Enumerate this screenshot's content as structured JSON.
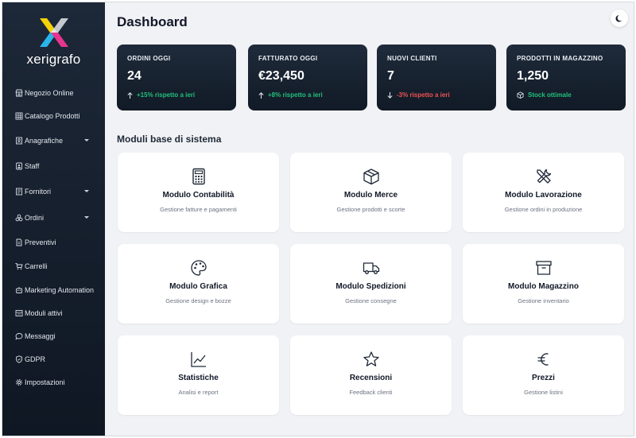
{
  "brand": {
    "name": "xerigrafo"
  },
  "sidebar": {
    "items": [
      {
        "label": "Negozio Online",
        "icon": "store-icon",
        "has_caret": false
      },
      {
        "label": "Catalogo Prodotti",
        "icon": "grid-icon",
        "has_caret": false
      },
      {
        "label": "Anagrafiche",
        "icon": "contacts-icon",
        "has_caret": true
      },
      {
        "label": "Staff",
        "icon": "badge-icon",
        "has_caret": false
      },
      {
        "label": "Fornitori",
        "icon": "supplier-icon",
        "has_caret": true
      },
      {
        "label": "Ordini",
        "icon": "boxes-icon",
        "has_caret": true
      },
      {
        "label": "Preventivi",
        "icon": "document-icon",
        "has_caret": false
      },
      {
        "label": "Carrelli",
        "icon": "cart-icon",
        "has_caret": false
      },
      {
        "label": "Marketing Automation",
        "icon": "robot-icon",
        "has_caret": false
      },
      {
        "label": "Moduli attivi",
        "icon": "modules-icon",
        "has_caret": false
      },
      {
        "label": "Messaggi",
        "icon": "chat-icon",
        "has_caret": false
      },
      {
        "label": "GDPR",
        "icon": "shield-icon",
        "has_caret": false
      },
      {
        "label": "Impostazioni",
        "icon": "gear-icon",
        "has_caret": false
      }
    ]
  },
  "header": {
    "title": "Dashboard",
    "theme_icon": "moon-icon"
  },
  "stats": [
    {
      "label": "ORDINI OGGI",
      "value": "24",
      "trend": "+15% rispetto a ieri",
      "trend_icon": "arrow-up-icon",
      "status": "positive"
    },
    {
      "label": "FATTURATO OGGI",
      "value": "€23,450",
      "trend": "+8% rispetto a ieri",
      "trend_icon": "arrow-up-icon",
      "status": "positive"
    },
    {
      "label": "NUOVI CLIENTI",
      "value": "7",
      "trend": "-3% rispetto a ieri",
      "trend_icon": "arrow-down-icon",
      "status": "negative"
    },
    {
      "label": "PRODOTTI IN MAGAZZINO",
      "value": "1,250",
      "trend": "Stock ottimale",
      "trend_icon": "box-icon",
      "status": "positive"
    }
  ],
  "modules": {
    "title": "Moduli base di sistema",
    "cards": [
      {
        "title": "Modulo Contabilità",
        "subtitle": "Gestione fatture e pagamenti",
        "icon": "calculator-icon"
      },
      {
        "title": "Modulo Merce",
        "subtitle": "Gestione prodotti e scorte",
        "icon": "package-icon"
      },
      {
        "title": "Modulo Lavorazione",
        "subtitle": "Gestione ordini in produzione",
        "icon": "tools-icon"
      },
      {
        "title": "Modulo Grafica",
        "subtitle": "Gestione design e bozze",
        "icon": "palette-icon"
      },
      {
        "title": "Modulo Spedizioni",
        "subtitle": "Gestione consegne",
        "icon": "truck-icon"
      },
      {
        "title": "Modulo Magazzino",
        "subtitle": "Gestione inventario",
        "icon": "archive-icon"
      },
      {
        "title": "Statistiche",
        "subtitle": "Analisi e report",
        "icon": "line-chart-icon"
      },
      {
        "title": "Recensioni",
        "subtitle": "Feedback clienti",
        "icon": "star-icon"
      },
      {
        "title": "Prezzi",
        "subtitle": "Gestione listini",
        "icon": "euro-icon"
      }
    ]
  },
  "colors": {
    "positive": "#22c07a",
    "negative": "#f05252",
    "sidebar_bg": "#1d2838",
    "card_dark": "#1f2b3b",
    "page_bg": "#f1f2f5"
  }
}
